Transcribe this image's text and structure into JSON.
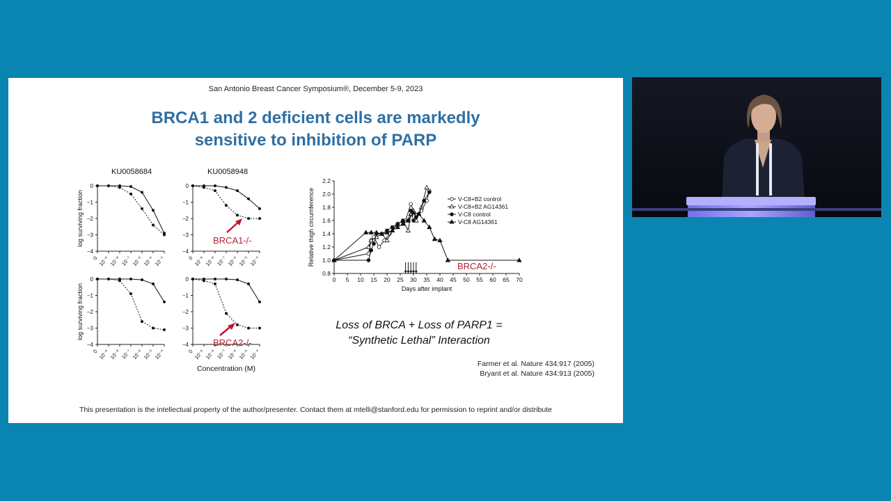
{
  "slide": {
    "conference": "San Antonio Breast Cancer Symposium®, December 5-9, 2023",
    "title_line1": "BRCA1 and 2 deficient cells are markedly",
    "title_line2": "sensitive to inhibition of PARP",
    "panel_titles": [
      "KU0058684",
      "KU0058948"
    ],
    "y_label": "log surviving fraction",
    "x_label": "Concentration (M)",
    "label_brca1": "BRCA1-/-",
    "label_brca2": "BRCA2-/-",
    "equation_line1": "Loss of BRCA + Loss of PARP1 =",
    "equation_line2": "“Synthetic Lethal” Interaction",
    "ref1": "Farmer et al. Nature 434:917 (2005)",
    "ref2": "Bryant et al. Nature 434:913 (2005)",
    "footer": "This presentation is the intellectual property of the author/presenter. Contact them at mtelli@stanford.edu for permission to reprint and/or distribute"
  },
  "chart_data": [
    {
      "type": "line",
      "panel": "KU0058684, top",
      "x": [
        0,
        1e-09,
        1e-08,
        1e-07,
        1e-06,
        1e-05,
        0.0001
      ],
      "ylim": [
        -4,
        0
      ],
      "ylabel": "log surviving fraction",
      "series": [
        {
          "values": [
            0,
            0,
            0,
            -0.05,
            -0.4,
            -1.5,
            -2.9
          ]
        },
        {
          "values": [
            0,
            0,
            -0.1,
            -0.5,
            -1.4,
            -2.4,
            -3.0
          ]
        }
      ]
    },
    {
      "type": "line",
      "panel": "KU0058948, top",
      "x": [
        0,
        1e-09,
        1e-08,
        1e-07,
        1e-06,
        1e-05,
        0.0001
      ],
      "ylim": [
        -4,
        0
      ],
      "annotation": "BRCA1-/-",
      "series": [
        {
          "values": [
            0,
            0,
            0,
            -0.1,
            -0.3,
            -0.8,
            -1.4
          ]
        },
        {
          "values": [
            0,
            -0.1,
            -0.3,
            -1.2,
            -1.8,
            -2.0,
            -2.0
          ]
        }
      ]
    },
    {
      "type": "line",
      "panel": "KU0058684, bottom",
      "x": [
        0,
        1e-09,
        1e-08,
        1e-07,
        1e-06,
        1e-05,
        0.0001
      ],
      "ylim": [
        -4,
        0
      ],
      "ylabel": "log surviving fraction",
      "series": [
        {
          "values": [
            0,
            0,
            0,
            0,
            -0.05,
            -0.3,
            -1.4
          ]
        },
        {
          "values": [
            0,
            0,
            -0.1,
            -0.9,
            -2.6,
            -3.0,
            -3.1
          ]
        }
      ]
    },
    {
      "type": "line",
      "panel": "KU0058948, bottom",
      "x": [
        0,
        1e-09,
        1e-08,
        1e-07,
        1e-06,
        1e-05,
        0.0001
      ],
      "ylim": [
        -4,
        0
      ],
      "xlabel": "Concentration (M)",
      "annotation": "BRCA2-/-",
      "series": [
        {
          "values": [
            0,
            0,
            0,
            0,
            -0.05,
            -0.3,
            -1.4
          ]
        },
        {
          "values": [
            0,
            -0.1,
            -0.3,
            -2.1,
            -2.8,
            -3.0,
            -3.0
          ]
        }
      ]
    },
    {
      "type": "line",
      "panel": "tumour growth",
      "xlabel": "Days after implant",
      "ylabel": "Relative thigh circumference",
      "xlim": [
        0,
        70
      ],
      "ylim": [
        0.8,
        2.2
      ],
      "annotation": "BRCA2-/-",
      "series": [
        {
          "name": "V-C8+B2 control",
          "x": [
            0,
            13,
            14,
            15,
            17,
            19,
            21,
            23,
            25,
            27,
            29,
            31,
            33,
            35,
            36
          ],
          "y": [
            1.0,
            1.1,
            1.3,
            1.35,
            1.2,
            1.3,
            1.4,
            1.5,
            1.55,
            1.6,
            1.85,
            1.65,
            1.75,
            1.9,
            2.05
          ]
        },
        {
          "name": "V-C8+B2 AG14361",
          "x": [
            0,
            13,
            14,
            16,
            18,
            20,
            22,
            24,
            26,
            28,
            29,
            30,
            31,
            33,
            35
          ],
          "y": [
            1.0,
            1.2,
            1.3,
            1.35,
            1.4,
            1.3,
            1.45,
            1.55,
            1.6,
            1.45,
            1.7,
            1.75,
            1.6,
            1.8,
            2.1
          ]
        },
        {
          "name": "V-C8 control",
          "x": [
            0,
            13,
            14,
            15,
            16,
            18,
            20,
            22,
            24,
            26,
            28,
            29,
            30,
            31,
            32,
            34,
            36
          ],
          "y": [
            1.0,
            1.0,
            1.15,
            1.25,
            1.4,
            1.4,
            1.45,
            1.5,
            1.55,
            1.6,
            1.6,
            1.75,
            1.6,
            1.65,
            1.7,
            1.9,
            2.03
          ]
        },
        {
          "name": "V-C8 AG14361",
          "x": [
            0,
            12,
            14,
            16,
            18,
            20,
            22,
            24,
            26,
            28,
            30,
            32,
            34,
            36,
            38,
            40,
            43,
            70
          ],
          "y": [
            1.0,
            1.42,
            1.42,
            1.42,
            1.4,
            1.42,
            1.45,
            1.5,
            1.55,
            1.6,
            1.72,
            1.7,
            1.6,
            1.5,
            1.32,
            1.3,
            1.0,
            1.0
          ]
        }
      ],
      "treatment_days": [
        27,
        28,
        29,
        30,
        31
      ]
    }
  ]
}
